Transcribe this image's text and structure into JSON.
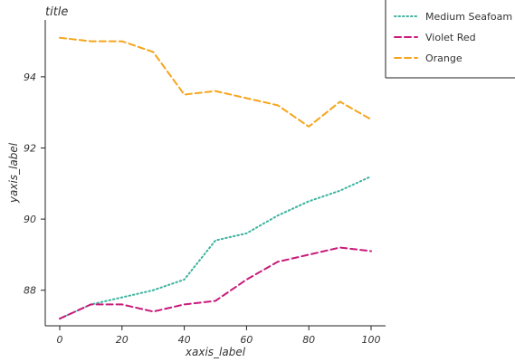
{
  "chart_data": {
    "type": "line",
    "title": "title",
    "xlabel": "xaxis_label",
    "ylabel": "yaxis_label",
    "xlim": [
      0,
      100
    ],
    "ylim": [
      87.0,
      95.6
    ],
    "x_ticks": [
      0,
      20,
      40,
      60,
      80,
      100
    ],
    "y_ticks": [
      88,
      90,
      92,
      94
    ],
    "legend_position": "right",
    "grid": false,
    "series": [
      {
        "name": "Medium Seafoam",
        "color": "#3cb3a0",
        "dash": "dotted",
        "x": [
          0,
          10,
          20,
          30,
          40,
          50,
          60,
          70,
          80,
          90,
          100
        ],
        "y": [
          87.2,
          87.6,
          87.8,
          88.0,
          88.3,
          89.4,
          89.6,
          90.1,
          90.5,
          90.8,
          91.2
        ]
      },
      {
        "name": "Violet Red",
        "color": "#c81a7a",
        "dash": "dashed",
        "x": [
          0,
          10,
          20,
          30,
          40,
          50,
          60,
          70,
          80,
          90,
          100
        ],
        "y": [
          87.2,
          87.6,
          87.6,
          87.4,
          87.6,
          87.7,
          88.3,
          88.8,
          89.0,
          89.2,
          89.1
        ]
      },
      {
        "name": "Orange",
        "color": "#f5a51c",
        "dash": "dashed",
        "x": [
          0,
          10,
          20,
          30,
          40,
          50,
          60,
          70,
          80,
          90,
          100
        ],
        "y": [
          95.1,
          95.0,
          95.0,
          94.7,
          93.5,
          93.6,
          93.4,
          93.2,
          92.6,
          93.3,
          92.8
        ]
      }
    ]
  }
}
